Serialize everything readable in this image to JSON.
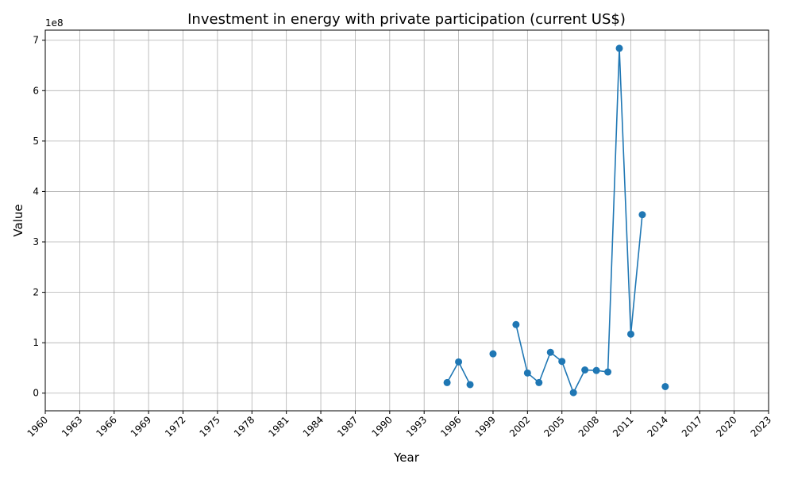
{
  "chart_data": {
    "type": "line",
    "title": "Investment in energy with private participation (current US$)",
    "xlabel": "Year",
    "ylabel": "Value",
    "y_offset_label": "1e8",
    "grid": true,
    "marker": "circle",
    "series_color": "#1f77b4",
    "xlim": [
      1960,
      2023
    ],
    "ylim": [
      -35000000,
      720000000
    ],
    "x_ticks": [
      1960,
      1963,
      1966,
      1969,
      1972,
      1975,
      1978,
      1981,
      1984,
      1987,
      1990,
      1993,
      1996,
      1999,
      2002,
      2005,
      2008,
      2011,
      2014,
      2017,
      2020,
      2023
    ],
    "y_ticks": [
      0,
      100000000,
      200000000,
      300000000,
      400000000,
      500000000,
      600000000,
      700000000
    ],
    "y_tick_labels": [
      "0",
      "1",
      "2",
      "3",
      "4",
      "5",
      "6",
      "7"
    ],
    "series": [
      {
        "x": [
          1995,
          1996,
          1997,
          1998,
          1999,
          2000,
          2001,
          2002,
          2003,
          2004,
          2005,
          2006,
          2007,
          2008,
          2009,
          2010,
          2011,
          2012,
          2013,
          2014
        ],
        "y": [
          21000000,
          62000000,
          17000000,
          null,
          78000000,
          null,
          136000000,
          40000000,
          21000000,
          81000000,
          63000000,
          1000000,
          46000000,
          45000000,
          42000000,
          684000000,
          117000000,
          354000000,
          null,
          13000000
        ]
      }
    ]
  }
}
